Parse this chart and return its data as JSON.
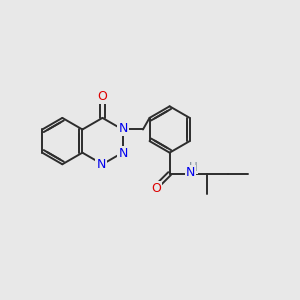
{
  "background_color": "#e8e8e8",
  "bond_color": "#2d2d2d",
  "nitrogen_color": "#0000ee",
  "oxygen_color": "#dd0000",
  "hydrogen_color": "#778899",
  "bond_lw": 1.4,
  "figsize": [
    3.0,
    3.0
  ],
  "dpi": 100,
  "xlim": [
    0,
    10
  ],
  "ylim": [
    0,
    10
  ]
}
